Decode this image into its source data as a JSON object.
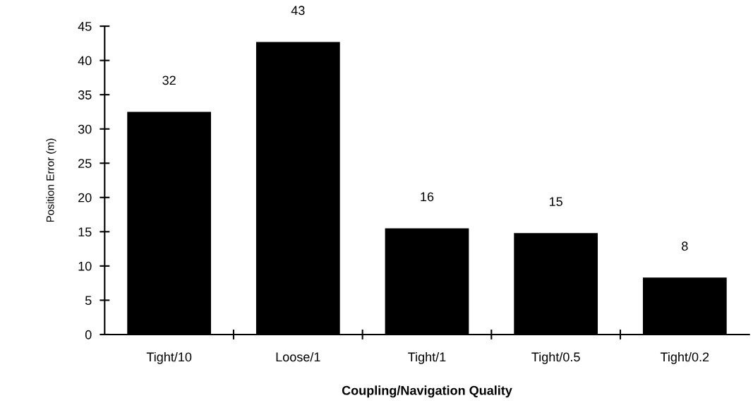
{
  "chart_data": {
    "type": "bar",
    "xlabel": "Coupling/Navigation Quality",
    "ylabel": "Position Error (m)",
    "categories": [
      "Tight/10",
      "Loose/1",
      "Tight/1",
      "Tight/0.5",
      "Tight/0.2"
    ],
    "values": [
      32.5,
      42.7,
      15.5,
      14.8,
      8.3
    ],
    "color": "#000000",
    "value_labels": [
      "32",
      "43",
      "16",
      "15",
      "8"
    ],
    "ylim": [
      0,
      45
    ],
    "yticks": [
      0,
      5,
      10,
      15,
      20,
      25,
      30,
      35,
      40,
      45
    ],
    "grid": false,
    "legend": false
  }
}
